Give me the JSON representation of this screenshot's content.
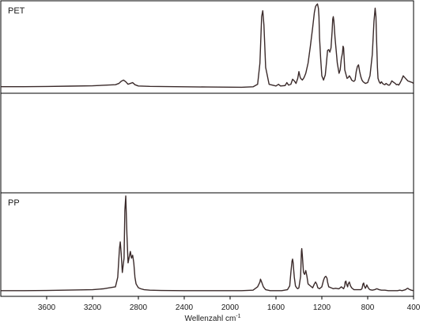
{
  "chart_data": {
    "type": "line",
    "title": "",
    "xlabel": "Wellenzahl cm",
    "xlabel_superscript": "-1",
    "x_reversed": true,
    "xlim": [
      4000,
      400
    ],
    "ylim": [
      0,
      1
    ],
    "grid": false,
    "legend": "none",
    "line_color": "#3a2a2a",
    "xticks": [
      3600,
      3200,
      2800,
      2400,
      2000,
      1600,
      1200,
      800,
      400
    ],
    "panels": [
      {
        "label": "PET",
        "series": [
          {
            "x": [
              4000,
              3800,
              3600,
              3400,
              3200,
              3000,
              2970,
              2950,
              2930,
              2910,
              2890,
              2870,
              2850,
              2830,
              2800,
              2700,
              2400,
              2200,
              2000,
              1900,
              1800,
              1760,
              1740,
              1725,
              1715,
              1705,
              1690,
              1660,
              1600,
              1578,
              1560,
              1520,
              1505,
              1490,
              1470,
              1455,
              1440,
              1425,
              1410,
              1400,
              1390,
              1385,
              1370,
              1355,
              1340,
              1320,
              1300,
              1280,
              1265,
              1255,
              1245,
              1238,
              1230,
              1225,
              1220,
              1210,
              1200,
              1185,
              1170,
              1160,
              1150,
              1140,
              1130,
              1120,
              1110,
              1105,
              1100,
              1095,
              1085,
              1075,
              1065,
              1050,
              1040,
              1030,
              1020,
              1015,
              1010,
              1005,
              1000,
              990,
              980,
              970,
              960,
              950,
              940,
              930,
              920,
              910,
              900,
              890,
              880,
              870,
              860,
              850,
              840,
              830,
              820,
              800,
              780,
              760,
              745,
              735,
              728,
              722,
              715,
              710,
              700,
              690,
              680,
              670,
              660,
              650,
              640,
              630,
              620,
              610,
              600,
              590,
              580,
              570,
              560,
              550,
              540,
              530,
              520,
              505,
              490,
              470,
              450,
              430,
              410,
              400
            ],
            "y": [
              0.022,
              0.022,
              0.024,
              0.028,
              0.032,
              0.045,
              0.06,
              0.085,
              0.1,
              0.08,
              0.05,
              0.06,
              0.07,
              0.045,
              0.03,
              0.025,
              0.02,
              0.018,
              0.016,
              0.015,
              0.02,
              0.05,
              0.3,
              0.85,
              0.92,
              0.75,
              0.25,
              0.05,
              0.03,
              0.05,
              0.03,
              0.035,
              0.07,
              0.04,
              0.05,
              0.11,
              0.09,
              0.06,
              0.12,
              0.2,
              0.14,
              0.12,
              0.1,
              0.13,
              0.18,
              0.3,
              0.5,
              0.72,
              0.9,
              0.97,
              0.99,
              1.0,
              0.95,
              0.85,
              0.6,
              0.35,
              0.15,
              0.1,
              0.16,
              0.3,
              0.45,
              0.46,
              0.43,
              0.48,
              0.68,
              0.82,
              0.85,
              0.8,
              0.6,
              0.45,
              0.3,
              0.18,
              0.22,
              0.35,
              0.42,
              0.5,
              0.48,
              0.35,
              0.22,
              0.17,
              0.12,
              0.13,
              0.15,
              0.13,
              0.1,
              0.09,
              0.085,
              0.1,
              0.2,
              0.26,
              0.28,
              0.2,
              0.14,
              0.1,
              0.08,
              0.07,
              0.06,
              0.07,
              0.15,
              0.4,
              0.8,
              0.95,
              0.85,
              0.55,
              0.25,
              0.12,
              0.08,
              0.06,
              0.08,
              0.06,
              0.05,
              0.045,
              0.06,
              0.05,
              0.04,
              0.04,
              0.06,
              0.09,
              0.08,
              0.07,
              0.06,
              0.045,
              0.05,
              0.04,
              0.06,
              0.1,
              0.15,
              0.12,
              0.09,
              0.08,
              0.07,
              0.06
            ]
          }
        ]
      },
      {
        "label": "",
        "series": []
      },
      {
        "label": "PP",
        "series": [
          {
            "x": [
              4000,
              3800,
              3600,
              3400,
              3200,
              3100,
              3000,
              2980,
              2965,
              2958,
              2950,
              2940,
              2925,
              2918,
              2910,
              2900,
              2890,
              2880,
              2870,
              2860,
              2850,
              2840,
              2830,
              2820,
              2800,
              2780,
              2750,
              2700,
              2600,
              2400,
              2200,
              2000,
              1900,
              1800,
              1760,
              1740,
              1735,
              1725,
              1710,
              1690,
              1650,
              1600,
              1550,
              1500,
              1480,
              1470,
              1460,
              1455,
              1450,
              1445,
              1440,
              1430,
              1420,
              1410,
              1400,
              1385,
              1378,
              1375,
              1370,
              1360,
              1350,
              1340,
              1330,
              1320,
              1300,
              1280,
              1265,
              1255,
              1245,
              1235,
              1220,
              1200,
              1185,
              1175,
              1165,
              1155,
              1150,
              1140,
              1120,
              1100,
              1080,
              1060,
              1050,
              1040,
              1030,
              1020,
              1010,
              1000,
              997,
              990,
              985,
              975,
              970,
              960,
              950,
              940,
              930,
              920,
              900,
              880,
              860,
              850,
              841,
              835,
              830,
              820,
              810,
              808,
              800,
              790,
              780,
              760,
              740,
              720,
              700,
              680,
              650,
              620,
              600,
              580,
              560,
              540,
              520,
              500,
              470,
              460,
              450,
              440,
              420,
              400
            ],
            "y": [
              0.01,
              0.01,
              0.012,
              0.016,
              0.02,
              0.03,
              0.05,
              0.15,
              0.45,
              0.52,
              0.4,
              0.2,
              0.35,
              0.85,
              1.0,
              0.6,
              0.3,
              0.36,
              0.42,
              0.35,
              0.38,
              0.3,
              0.15,
              0.08,
              0.04,
              0.03,
              0.02,
              0.015,
              0.012,
              0.01,
              0.01,
              0.01,
              0.01,
              0.015,
              0.05,
              0.1,
              0.13,
              0.1,
              0.05,
              0.02,
              0.01,
              0.01,
              0.01,
              0.02,
              0.06,
              0.2,
              0.32,
              0.34,
              0.3,
              0.22,
              0.15,
              0.06,
              0.04,
              0.03,
              0.04,
              0.16,
              0.42,
              0.45,
              0.38,
              0.2,
              0.18,
              0.22,
              0.16,
              0.08,
              0.06,
              0.04,
              0.08,
              0.1,
              0.08,
              0.04,
              0.03,
              0.05,
              0.12,
              0.15,
              0.16,
              0.14,
              0.1,
              0.05,
              0.04,
              0.03,
              0.035,
              0.03,
              0.03,
              0.04,
              0.05,
              0.04,
              0.03,
              0.06,
              0.1,
              0.11,
              0.08,
              0.05,
              0.08,
              0.1,
              0.06,
              0.04,
              0.03,
              0.02,
              0.02,
              0.02,
              0.02,
              0.03,
              0.08,
              0.09,
              0.06,
              0.035,
              0.06,
              0.07,
              0.05,
              0.03,
              0.02,
              0.015,
              0.02,
              0.03,
              0.02,
              0.015,
              0.015,
              0.01,
              0.01,
              0.01,
              0.01,
              0.01,
              0.015,
              0.01,
              0.02,
              0.03,
              0.035,
              0.025,
              0.015,
              0.01
            ]
          }
        ]
      }
    ]
  }
}
